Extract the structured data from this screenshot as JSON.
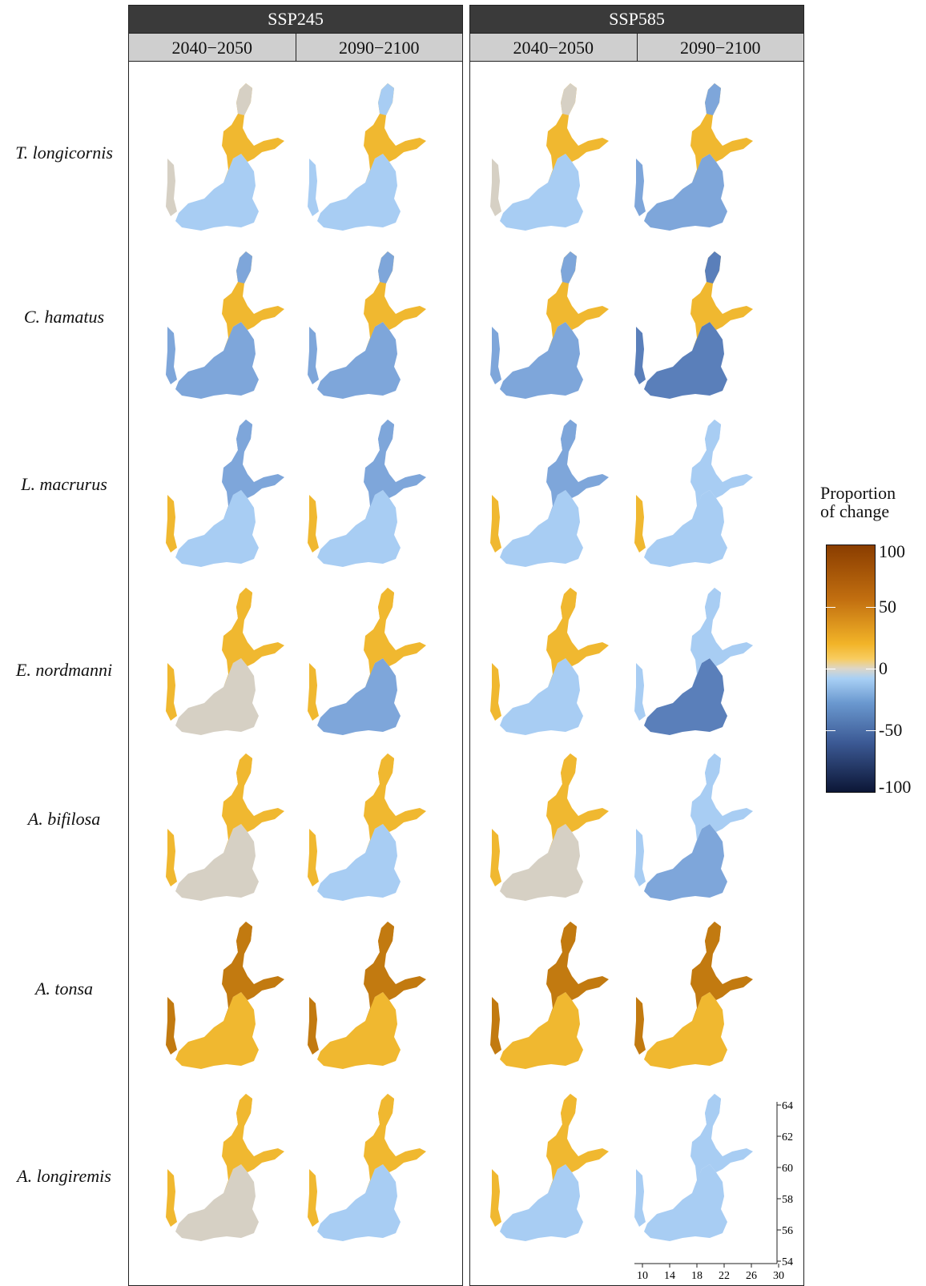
{
  "scenarios": [
    {
      "name": "SSP245",
      "periods": [
        "2040−2050",
        "2090−2100"
      ]
    },
    {
      "name": "SSP585",
      "periods": [
        "2040−2050",
        "2090−2100"
      ]
    }
  ],
  "species": [
    "T. longicornis",
    "C. hamatus",
    "L. macrurus",
    "E. nordmanni",
    "A. bifilosa",
    "A. tonsa",
    "A. longiremis"
  ],
  "legend": {
    "title_line1": "Proportion",
    "title_line2": "of change",
    "tick_labels": [
      "100",
      "50",
      "0",
      "-50",
      "-100"
    ]
  },
  "axes": {
    "lat_ticks": [
      "64",
      "62",
      "60",
      "58",
      "56",
      "54"
    ],
    "lon_ticks": [
      "10",
      "14",
      "18",
      "22",
      "26",
      "30"
    ]
  },
  "colors": {
    "strong_increase": "#c27a10",
    "increase": "#f0b830",
    "neutral": "#d6d0c4",
    "slight_decrease": "#a8cdf3",
    "decrease": "#7ea6da",
    "strong_decrease": "#5a7fba"
  },
  "map_fills": [
    [
      [
        "slight_decrease",
        "increase",
        "neutral"
      ],
      [
        "slight_decrease",
        "increase",
        "slight_decrease"
      ],
      [
        "slight_decrease",
        "increase",
        "neutral"
      ],
      [
        "decrease",
        "increase",
        "decrease"
      ]
    ],
    [
      [
        "decrease",
        "increase",
        "decrease"
      ],
      [
        "decrease",
        "increase",
        "decrease"
      ],
      [
        "decrease",
        "increase",
        "decrease"
      ],
      [
        "strong_decrease",
        "increase",
        "strong_decrease"
      ]
    ],
    [
      [
        "slight_decrease",
        "decrease",
        "increase"
      ],
      [
        "slight_decrease",
        "decrease",
        "increase"
      ],
      [
        "slight_decrease",
        "decrease",
        "increase"
      ],
      [
        "slight_decrease",
        "slight_decrease",
        "increase"
      ]
    ],
    [
      [
        "neutral",
        "increase",
        "increase"
      ],
      [
        "decrease",
        "increase",
        "increase"
      ],
      [
        "slight_decrease",
        "increase",
        "increase"
      ],
      [
        "strong_decrease",
        "slight_decrease",
        "slight_decrease"
      ]
    ],
    [
      [
        "neutral",
        "increase",
        "increase"
      ],
      [
        "slight_decrease",
        "increase",
        "increase"
      ],
      [
        "neutral",
        "increase",
        "increase"
      ],
      [
        "decrease",
        "slight_decrease",
        "slight_decrease"
      ]
    ],
    [
      [
        "increase",
        "strong_increase",
        "strong_increase"
      ],
      [
        "increase",
        "strong_increase",
        "strong_increase"
      ],
      [
        "increase",
        "strong_increase",
        "strong_increase"
      ],
      [
        "increase",
        "strong_increase",
        "strong_increase"
      ]
    ],
    [
      [
        "neutral",
        "increase",
        "increase"
      ],
      [
        "slight_decrease",
        "increase",
        "increase"
      ],
      [
        "slight_decrease",
        "increase",
        "increase"
      ],
      [
        "slight_decrease",
        "slight_decrease",
        "slight_decrease"
      ]
    ]
  ]
}
